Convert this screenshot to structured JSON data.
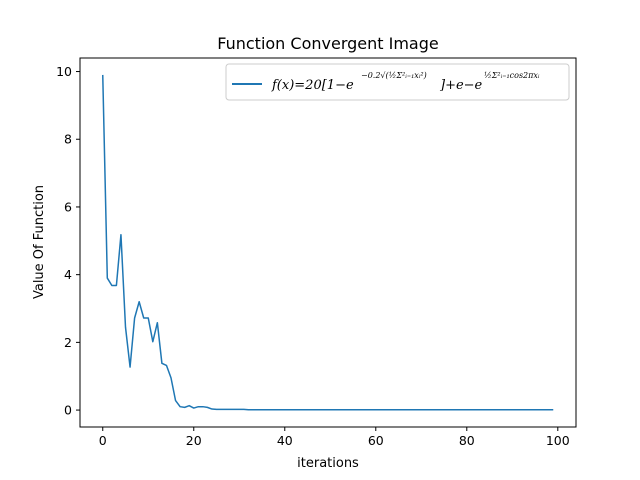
{
  "chart_data": {
    "type": "line",
    "title": "Function Convergent Image",
    "xlabel": "iterations",
    "ylabel": "Value Of Function",
    "xlim": [
      -5,
      104
    ],
    "ylim": [
      -0.5,
      10.4
    ],
    "xticks": [
      0,
      20,
      40,
      60,
      80,
      100
    ],
    "yticks": [
      0,
      2,
      4,
      6,
      8,
      10
    ],
    "xtick_labels": [
      "0",
      "20",
      "40",
      "60",
      "80",
      "100"
    ],
    "ytick_labels": [
      "0",
      "2",
      "4",
      "6",
      "8",
      "10"
    ],
    "grid": false,
    "legend_position": "top-right",
    "series": [
      {
        "name": "f(x) = 20[1 − e^(−0.2√(½ Σ_{i=1}^2 x_i^2))] + e − e^(½ Σ_{i=1}^2 cos2πx_i)",
        "color": "#1f77b4",
        "x": [
          0,
          1,
          2,
          3,
          4,
          5,
          6,
          7,
          8,
          9,
          10,
          11,
          12,
          13,
          14,
          15,
          16,
          17,
          18,
          19,
          20,
          21,
          22,
          23,
          24,
          25,
          26,
          27,
          28,
          29,
          30,
          31,
          32,
          33,
          34,
          35,
          36,
          37,
          38,
          39,
          40,
          41,
          42,
          43,
          44,
          45,
          46,
          47,
          48,
          49,
          50,
          51,
          52,
          53,
          54,
          55,
          56,
          57,
          58,
          59,
          60,
          61,
          62,
          63,
          64,
          65,
          66,
          67,
          68,
          69,
          70,
          71,
          72,
          73,
          74,
          75,
          76,
          77,
          78,
          79,
          80,
          81,
          82,
          83,
          84,
          85,
          86,
          87,
          88,
          89,
          90,
          91,
          92,
          93,
          94,
          95,
          96,
          97,
          98,
          99
        ],
        "y": [
          9.9,
          3.9,
          3.68,
          3.68,
          5.18,
          2.45,
          1.27,
          2.72,
          3.2,
          2.72,
          2.72,
          2.02,
          2.58,
          1.38,
          1.32,
          0.95,
          0.28,
          0.1,
          0.08,
          0.13,
          0.06,
          0.1,
          0.1,
          0.08,
          0.03,
          0.02,
          0.02,
          0.02,
          0.02,
          0.02,
          0.02,
          0.02,
          0.01,
          0.01,
          0.01,
          0.01,
          0.01,
          0.01,
          0.01,
          0.01,
          0.01,
          0.01,
          0.01,
          0.01,
          0.01,
          0.01,
          0.01,
          0.01,
          0.01,
          0.01,
          0.01,
          0.01,
          0.01,
          0.01,
          0.01,
          0.01,
          0.01,
          0.01,
          0.01,
          0.01,
          0.01,
          0.01,
          0.01,
          0.01,
          0.01,
          0.01,
          0.01,
          0.01,
          0.01,
          0.01,
          0.01,
          0.01,
          0.01,
          0.01,
          0.01,
          0.01,
          0.01,
          0.01,
          0.01,
          0.01,
          0.01,
          0.01,
          0.01,
          0.01,
          0.01,
          0.01,
          0.01,
          0.01,
          0.01,
          0.01,
          0.01,
          0.01,
          0.01,
          0.01,
          0.01,
          0.01,
          0.01,
          0.01,
          0.01,
          0.01
        ]
      }
    ]
  }
}
